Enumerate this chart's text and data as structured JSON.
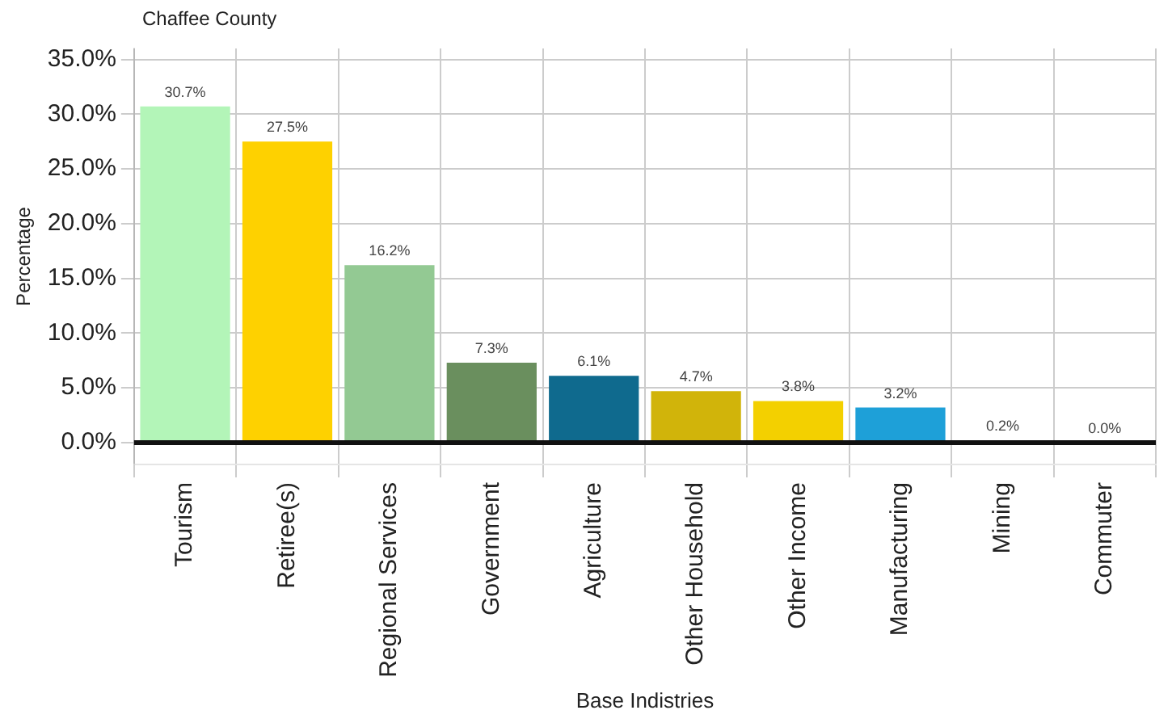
{
  "chart_data": {
    "type": "bar",
    "title": "Chaffee County",
    "xlabel": "Base Indistries",
    "ylabel": "Percentage",
    "categories": [
      "Tourism",
      "Retiree(s)",
      "Regional Services",
      "Government",
      "Agriculture",
      "Other Household",
      "Other Income",
      "Manufacturing",
      "Mining",
      "Commuter"
    ],
    "values": [
      30.7,
      27.5,
      16.2,
      7.3,
      6.1,
      4.7,
      3.8,
      3.2,
      0.2,
      0.0
    ],
    "colors": [
      "#b3f5b8",
      "#fed100",
      "#93c993",
      "#6a8f5e",
      "#0f6a8e",
      "#d1b40a",
      "#f3d000",
      "#1ea0d8",
      "#cccccc",
      "#cccccc"
    ],
    "value_labels": [
      "30.7%",
      "27.5%",
      "16.2%",
      "7.3%",
      "6.1%",
      "4.7%",
      "3.8%",
      "3.2%",
      "0.2%",
      "0.0%"
    ],
    "ylim": [
      -2,
      36
    ],
    "yticks": [
      {
        "value": 0,
        "label": "0.0%"
      },
      {
        "value": 5,
        "label": "5.0%"
      },
      {
        "value": 10,
        "label": "10.0%"
      },
      {
        "value": 15,
        "label": "15.0%"
      },
      {
        "value": 20,
        "label": "20.0%"
      },
      {
        "value": 25,
        "label": "25.0%"
      },
      {
        "value": 30,
        "label": "30.0%"
      },
      {
        "value": 35,
        "label": "35.0%"
      }
    ],
    "ref_lines": [
      {
        "axis": "y",
        "value": 0,
        "color": "#111111"
      }
    ],
    "grid": true,
    "legend": false
  }
}
